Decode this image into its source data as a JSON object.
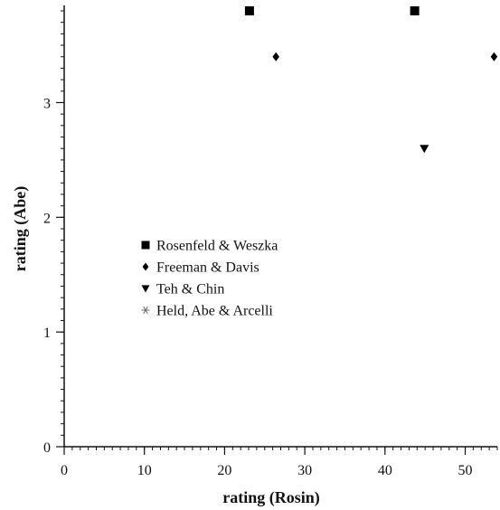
{
  "chart_data": {
    "type": "scatter",
    "xlabel": "rating (Rosin)",
    "ylabel": "rating (Abe)",
    "xlim": [
      0,
      54
    ],
    "ylim": [
      0,
      3.8
    ],
    "xticks": [
      0,
      10,
      20,
      30,
      40,
      50
    ],
    "yticks": [
      0,
      1,
      2,
      3
    ],
    "x_minor_step": 1,
    "y_minor_step": 0.1,
    "legend_position": "center-left",
    "series": [
      {
        "name": "Rosenfeld & Weszka",
        "marker": "square",
        "points": [
          [
            23.1,
            3.8
          ],
          [
            43.7,
            3.8
          ]
        ]
      },
      {
        "name": "Freeman & Davis",
        "marker": "diamond",
        "points": [
          [
            26.4,
            3.4
          ],
          [
            53.6,
            3.4
          ]
        ]
      },
      {
        "name": "Teh & Chin",
        "marker": "triangle-down",
        "points": [
          [
            44.9,
            2.6
          ]
        ]
      },
      {
        "name": "Held, Abe & Arcelli",
        "marker": "star",
        "points": []
      }
    ]
  }
}
